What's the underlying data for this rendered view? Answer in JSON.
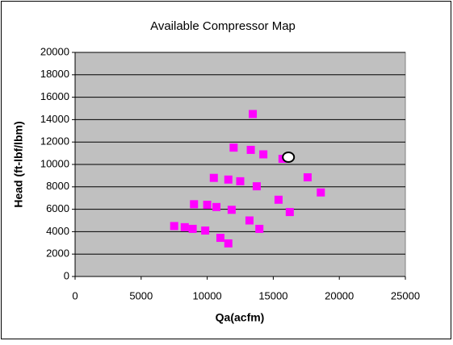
{
  "chart_data": {
    "type": "scatter",
    "title": "Available Compressor Map",
    "x_label": "Qa(acfm)",
    "y_label": "Head (ft-lbf/lbm)",
    "xlim": [
      0,
      25000
    ],
    "xticks": [
      0,
      5000,
      10000,
      15000,
      20000,
      25000
    ],
    "ylim": [
      0,
      20000
    ],
    "yticks": [
      0,
      2000,
      4000,
      6000,
      8000,
      10000,
      12000,
      14000,
      16000,
      18000,
      20000
    ],
    "grid": true,
    "plot_background": "#c0c0c0",
    "series": [
      {
        "color": "#ff00ff",
        "marker": "square",
        "x": [
          7500,
          8300,
          8900,
          9000,
          9850,
          10000,
          10500,
          10700,
          11000,
          11600,
          11600,
          11850,
          12000,
          12500,
          13200,
          13300,
          13450,
          13750,
          13950,
          14250,
          15400,
          15700,
          16250,
          17600,
          18600
        ],
        "values": [
          4500,
          4400,
          4250,
          6450,
          4100,
          6400,
          8800,
          6200,
          3450,
          2950,
          8650,
          5950,
          11500,
          8500,
          5000,
          11300,
          14500,
          8050,
          4250,
          10900,
          6850,
          10500,
          5750,
          8850,
          7500
        ]
      },
      {
        "color": "#ffffff",
        "edgecolor": "#000000",
        "marker": "circle",
        "x": [
          16150
        ],
        "values": [
          10650
        ]
      }
    ]
  }
}
